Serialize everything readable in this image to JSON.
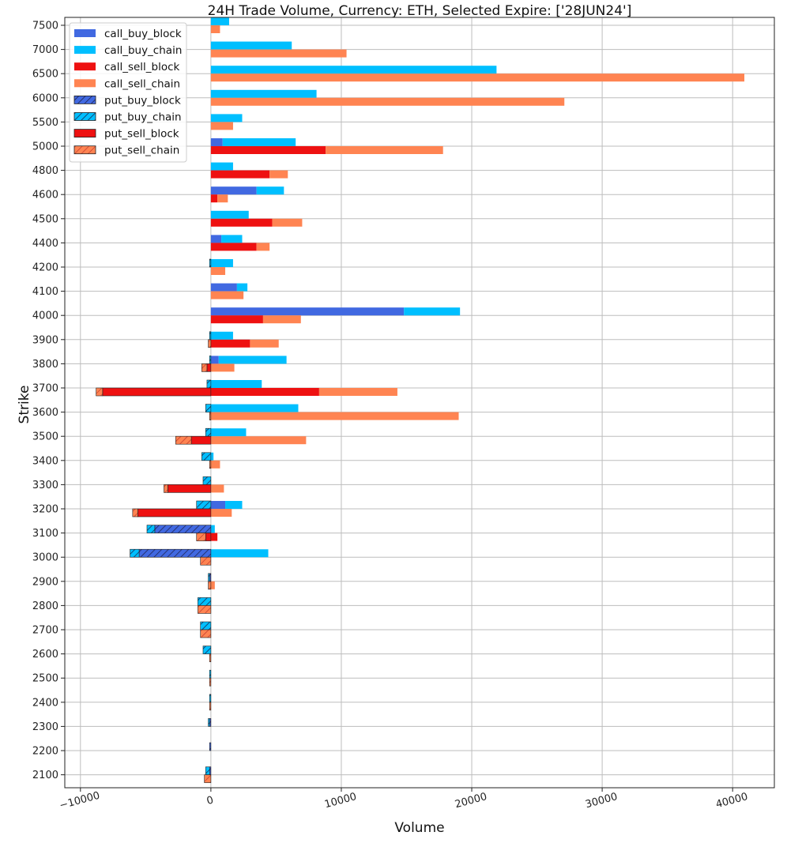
{
  "chart_data": {
    "type": "bar",
    "orientation": "horizontal",
    "title": "24H Trade Volume, Currency: ETH, Selected Expire: ['28JUN24']",
    "xlabel": "Volume",
    "ylabel": "Strike",
    "xlim": [
      -11200,
      43200
    ],
    "x_ticks": [
      -10000,
      0,
      10000,
      20000,
      30000,
      40000
    ],
    "x_tick_labels": [
      "−10000",
      "0",
      "10000",
      "20000",
      "30000",
      "40000"
    ],
    "grid": true,
    "legend_position": "top-left",
    "categories": [
      "7500",
      "7000",
      "6500",
      "6000",
      "5500",
      "5000",
      "4800",
      "4600",
      "4500",
      "4400",
      "4200",
      "4100",
      "4000",
      "3900",
      "3800",
      "3700",
      "3600",
      "3500",
      "3400",
      "3300",
      "3200",
      "3100",
      "3000",
      "2900",
      "2800",
      "2700",
      "2600",
      "2500",
      "2400",
      "2300",
      "2200",
      "2100"
    ],
    "series": [
      {
        "name": "call_buy_block",
        "color": "#4169e1",
        "hatch": false,
        "stack": "buy",
        "values": [
          0,
          0,
          0,
          0,
          0,
          900,
          0,
          3500,
          0,
          800,
          0,
          2000,
          14800,
          0,
          600,
          0,
          0,
          0,
          0,
          0,
          1100,
          0,
          0,
          0,
          0,
          0,
          0,
          0,
          0,
          0,
          0,
          0
        ]
      },
      {
        "name": "call_buy_chain",
        "color": "#00bfff",
        "hatch": false,
        "stack": "buy",
        "values": [
          1400,
          6200,
          21900,
          8100,
          2400,
          5600,
          1700,
          2100,
          2900,
          1600,
          1700,
          800,
          4300,
          1700,
          5200,
          3900,
          6700,
          2700,
          200,
          0,
          1300,
          300,
          4400,
          0,
          0,
          0,
          0,
          0,
          0,
          0,
          0,
          0
        ]
      },
      {
        "name": "call_sell_block",
        "color": "#ee1111",
        "hatch": false,
        "stack": "sell",
        "values": [
          0,
          0,
          0,
          0,
          0,
          8800,
          4500,
          500,
          4700,
          3500,
          0,
          0,
          4000,
          3000,
          0,
          8300,
          0,
          0,
          0,
          0,
          0,
          500,
          0,
          0,
          0,
          0,
          0,
          0,
          0,
          0,
          0,
          0
        ]
      },
      {
        "name": "call_sell_chain",
        "color": "#ff8452",
        "hatch": false,
        "stack": "sell",
        "values": [
          700,
          10400,
          40900,
          27100,
          1700,
          9000,
          1400,
          800,
          2300,
          1000,
          1100,
          2500,
          2900,
          2200,
          1800,
          6000,
          19000,
          7300,
          700,
          1000,
          1600,
          0,
          0,
          300,
          0,
          0,
          0,
          0,
          0,
          0,
          0,
          0
        ]
      },
      {
        "name": "put_buy_block",
        "color": "#4169e1",
        "hatch": true,
        "stack": "buy",
        "values": [
          0,
          0,
          0,
          0,
          0,
          0,
          0,
          0,
          0,
          0,
          0,
          0,
          0,
          0,
          0,
          0,
          0,
          0,
          0,
          0,
          0,
          -4300,
          -5500,
          -100,
          0,
          0,
          0,
          0,
          0,
          -100,
          -100,
          -100
        ]
      },
      {
        "name": "put_buy_chain",
        "color": "#00bfff",
        "hatch": true,
        "stack": "buy",
        "values": [
          0,
          0,
          0,
          0,
          0,
          0,
          0,
          0,
          0,
          0,
          -100,
          0,
          0,
          -100,
          -100,
          -300,
          -400,
          -400,
          -700,
          -600,
          -1100,
          -600,
          -700,
          -100,
          -1000,
          -800,
          -600,
          -100,
          -100,
          -100,
          0,
          -300
        ]
      },
      {
        "name": "put_sell_block",
        "color": "#ee1111",
        "hatch": true,
        "stack": "sell",
        "values": [
          0,
          0,
          0,
          0,
          0,
          0,
          0,
          0,
          0,
          0,
          0,
          0,
          0,
          0,
          -300,
          -8300,
          0,
          -1500,
          0,
          -3300,
          -5600,
          -400,
          0,
          0,
          0,
          0,
          0,
          0,
          0,
          0,
          0,
          0
        ]
      },
      {
        "name": "put_sell_chain",
        "color": "#ff8452",
        "hatch": true,
        "stack": "sell",
        "values": [
          0,
          0,
          0,
          0,
          0,
          0,
          0,
          0,
          0,
          0,
          0,
          0,
          0,
          -200,
          -400,
          -500,
          -100,
          -1200,
          -100,
          -300,
          -400,
          -700,
          -800,
          -200,
          -1000,
          -800,
          -100,
          -100,
          -100,
          0,
          0,
          -500
        ]
      }
    ]
  }
}
